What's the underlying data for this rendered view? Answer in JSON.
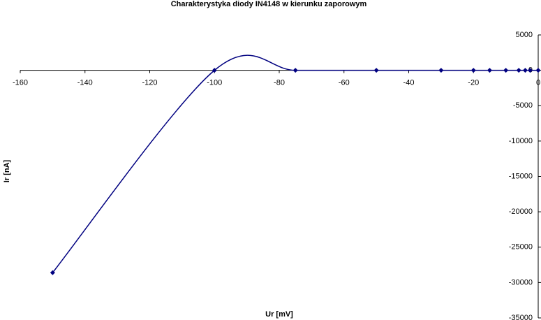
{
  "chart_data": {
    "type": "scatter",
    "title": "Charakterystyka diody IN4148 w kierunku zaporowym",
    "x_label": "Ur [mV]",
    "y_label": "Ir [nA]",
    "series": [
      {
        "color": "#000080",
        "x": [
          -150,
          -100,
          -75,
          -50,
          -30,
          -20,
          -15,
          -10,
          -6,
          -4,
          -2.5,
          0
        ],
        "values": [
          -28600,
          0,
          0,
          0,
          0,
          0,
          0,
          0,
          0,
          0,
          0,
          0
        ]
      }
    ],
    "xlim": [
      -160,
      0
    ],
    "xticks": [
      -160,
      -140,
      -120,
      -100,
      -80,
      -60,
      -40,
      -20,
      0
    ],
    "ylim": [
      -35000,
      5000
    ],
    "yticks": [
      5000,
      0,
      -5000,
      -10000,
      -15000,
      -20000,
      -25000,
      -30000,
      -35000
    ],
    "smooth": true
  }
}
